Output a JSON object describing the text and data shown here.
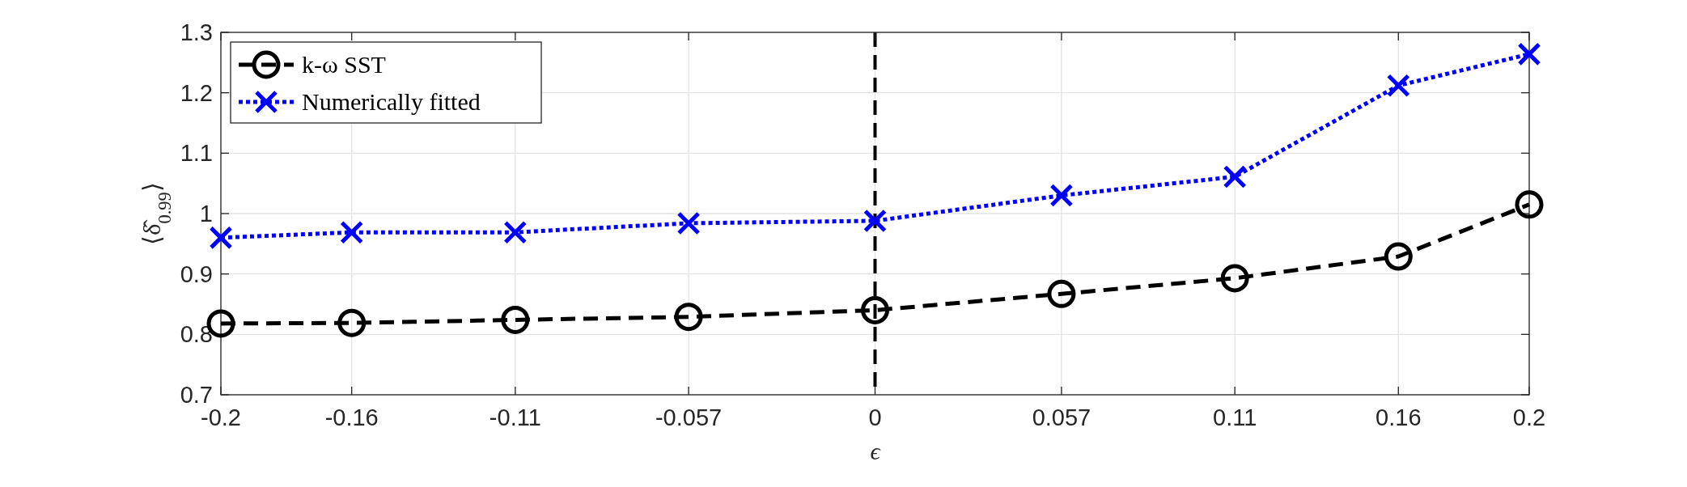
{
  "chart_data": {
    "type": "line",
    "xlabel": "ϵ",
    "ylabel": "⟨δ̂$_{0.99}$⟩",
    "x": [
      -0.2,
      -0.16,
      -0.11,
      -0.057,
      0,
      0.057,
      0.11,
      0.16,
      0.2
    ],
    "xlim": [
      -0.2,
      0.2
    ],
    "xticks": [
      -0.2,
      -0.16,
      -0.11,
      -0.057,
      0,
      0.057,
      0.11,
      0.16,
      0.2
    ],
    "ylim": [
      0.7,
      1.3
    ],
    "yticks": [
      0.7,
      0.8,
      0.9,
      1,
      1.1,
      1.2,
      1.3
    ],
    "grid": true,
    "legend": "top left",
    "ref_lines": [
      {
        "axis": "x",
        "value": 0,
        "color": "#000000",
        "line_style": "dashed"
      }
    ],
    "series": [
      {
        "name": "k-ω SST",
        "color": "#000000",
        "marker": "circle",
        "line_style": "dashed",
        "values": [
          0.818,
          0.819,
          0.824,
          0.829,
          0.84,
          0.867,
          0.893,
          0.929,
          1.015
        ]
      },
      {
        "name": "Numerically fitted",
        "color": "#0000ff",
        "marker": "cross",
        "line_style": "dotted",
        "values": [
          0.96,
          0.969,
          0.969,
          0.984,
          0.988,
          1.03,
          1.061,
          1.212,
          1.264
        ]
      }
    ]
  }
}
